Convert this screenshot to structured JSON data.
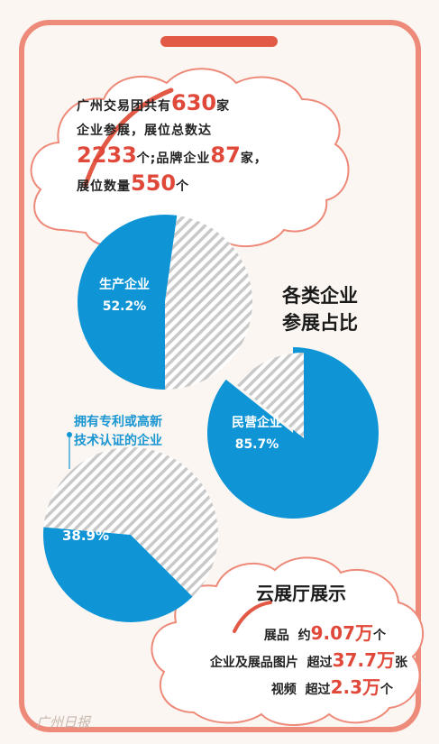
{
  "intro": {
    "t1": "广州交易团共有",
    "n1": "630",
    "t2": "家",
    "t3": "企业参展，展位总数达",
    "n2": "2233",
    "t4": "个;品牌企业",
    "n3": "87",
    "t5": "家，",
    "t6": "展位数量",
    "n4": "550",
    "t7": "个"
  },
  "section_title_line1": "各类企业",
  "section_title_line2": "参展占比",
  "patent_label_line1": "拥有专利或高新",
  "patent_label_line2": "技术认证的企业",
  "cloud": {
    "title": "云展厅展示",
    "rows": [
      {
        "label": "展品",
        "prefix": "约",
        "value": "9.07万",
        "unit": "个"
      },
      {
        "label": "企业及展品图片",
        "prefix": "超过",
        "value": "37.7万",
        "unit": "张"
      },
      {
        "label": "视频",
        "prefix": "超过",
        "value": "2.3万",
        "unit": "个"
      }
    ]
  },
  "watermark": "广州日报",
  "colors": {
    "accent_blue": "#0f95d6",
    "accent_red": "#e0483a",
    "frame": "#ed8a7a"
  },
  "chart_data": [
    {
      "type": "pie",
      "slices": [
        {
          "name": "生产企业",
          "value": 52.2
        },
        {
          "name": "",
          "value": 47.8
        }
      ],
      "labels": [
        "生产企业",
        "52.2%"
      ]
    },
    {
      "type": "pie",
      "slices": [
        {
          "name": "民营企业",
          "value": 85.7
        },
        {
          "name": "",
          "value": 14.3
        }
      ],
      "labels": [
        "民营企业",
        "85.7%"
      ]
    },
    {
      "type": "pie",
      "slices": [
        {
          "name": "拥有专利或高新技术认证的企业",
          "value": 38.9
        },
        {
          "name": "",
          "value": 61.1
        }
      ],
      "labels": [
        "38.9%"
      ]
    }
  ]
}
